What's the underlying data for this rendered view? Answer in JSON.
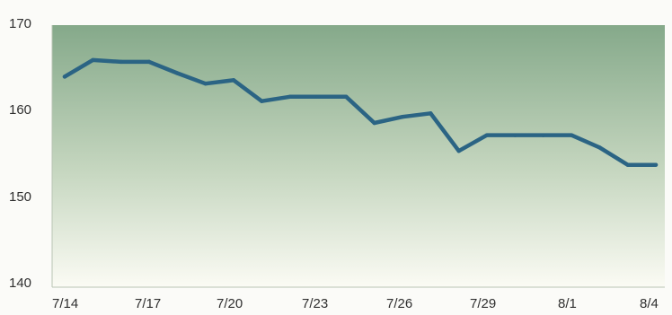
{
  "chart_data": {
    "type": "line",
    "title": "",
    "xlabel": "",
    "ylabel": "",
    "categories": [
      "7/14",
      "7/15",
      "7/16",
      "7/17",
      "7/18",
      "7/19",
      "7/20",
      "7/21",
      "7/22",
      "7/23",
      "7/24",
      "7/25",
      "7/26",
      "7/27",
      "7/28",
      "7/29",
      "7/30",
      "7/31",
      "8/1",
      "8/2",
      "8/3",
      "8/4"
    ],
    "x_tick_labels": [
      "7/14",
      "7/17",
      "7/20",
      "7/23",
      "7/26",
      "7/29",
      "8/1",
      "8/4"
    ],
    "y_ticks": [
      "170",
      "160",
      "150",
      "140"
    ],
    "ylim": [
      140,
      170
    ],
    "grid": false,
    "series": [
      {
        "values": [
          164.1,
          166.0,
          165.8,
          165.8,
          164.5,
          163.3,
          163.7,
          161.3,
          161.8,
          161.8,
          161.8,
          158.8,
          159.5,
          159.9,
          155.6,
          157.4,
          157.4,
          157.4,
          157.4,
          156.0,
          154.0,
          154.0
        ]
      }
    ],
    "line_color": "#2b6484",
    "plot_gradient": [
      "#85a98a",
      "#fbfbf4"
    ]
  }
}
